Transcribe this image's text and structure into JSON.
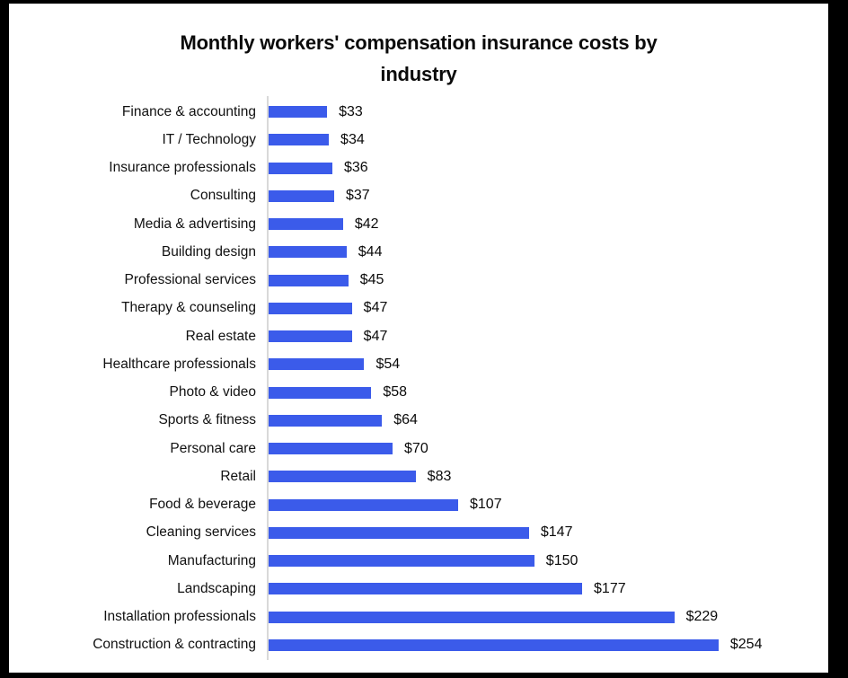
{
  "chart_data": {
    "type": "bar",
    "orientation": "horizontal",
    "title": "Monthly workers' compensation insurance costs by industry",
    "title_lines": [
      "Monthly workers' compensation insurance costs by",
      "industry"
    ],
    "categories": [
      "Finance & accounting",
      "IT / Technology",
      "Insurance professionals",
      "Consulting",
      "Media & advertising",
      "Building design",
      "Professional services",
      "Therapy & counseling",
      "Real estate",
      "Healthcare professionals",
      "Photo & video",
      "Sports & fitness",
      "Personal care",
      "Retail",
      "Food & beverage",
      "Cleaning services",
      "Manufacturing",
      "Landscaping",
      "Installation professionals",
      "Construction & contracting"
    ],
    "values": [
      33,
      34,
      36,
      37,
      42,
      44,
      45,
      47,
      47,
      54,
      58,
      64,
      70,
      83,
      107,
      147,
      150,
      177,
      229,
      254
    ],
    "value_labels": [
      "$33",
      "$34",
      "$36",
      "$37",
      "$42",
      "$44",
      "$45",
      "$47",
      "$47",
      "$54",
      "$58",
      "$64",
      "$70",
      "$83",
      "$107",
      "$147",
      "$150",
      "$177",
      "$229",
      "$254"
    ],
    "xlabel": "",
    "ylabel": "",
    "xlim": [
      0,
      300
    ],
    "grid": false,
    "legend": false,
    "bar_color": "#3b5bea",
    "axis_color": "#d9d9d9",
    "text_color": "#111111",
    "background_color": "#ffffff",
    "frame_color": "#000000"
  }
}
